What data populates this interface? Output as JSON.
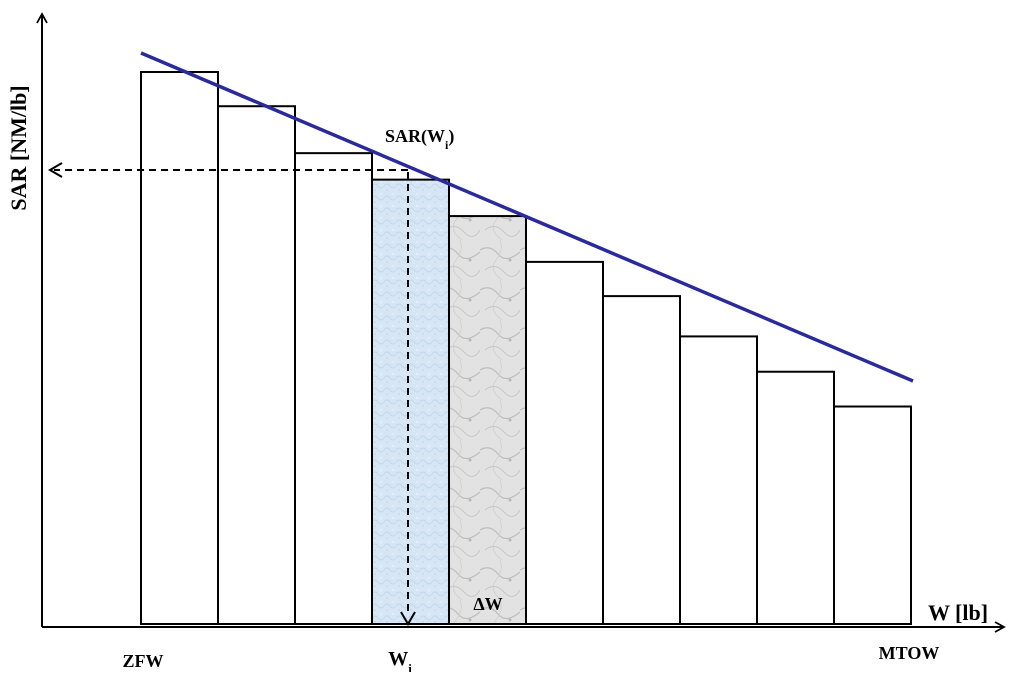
{
  "diagram": {
    "y_axis_label": "SAR [NM/lb]",
    "x_axis_label": "W [lb]",
    "bar_heights_relative": [
      0.0,
      0.062,
      0.147,
      0.195,
      0.261,
      0.344,
      0.406,
      0.479,
      0.543,
      0.606
    ],
    "highlight_bar_indices": [
      3,
      4
    ],
    "annotations": {
      "sar_wi_base": "SAR(W",
      "sar_wi_sub": "i",
      "sar_wi_close": ")",
      "delta_w": "ΔW",
      "wi_base": "W",
      "wi_sub": "i",
      "zfw": "ZFW",
      "mtow": "MTOW"
    },
    "colors": {
      "trend_line": "#2b2a9c",
      "bar_outline": "#000000",
      "highlight_blue": "#d6e6f5",
      "highlight_gray": "#dcdcdc"
    }
  }
}
